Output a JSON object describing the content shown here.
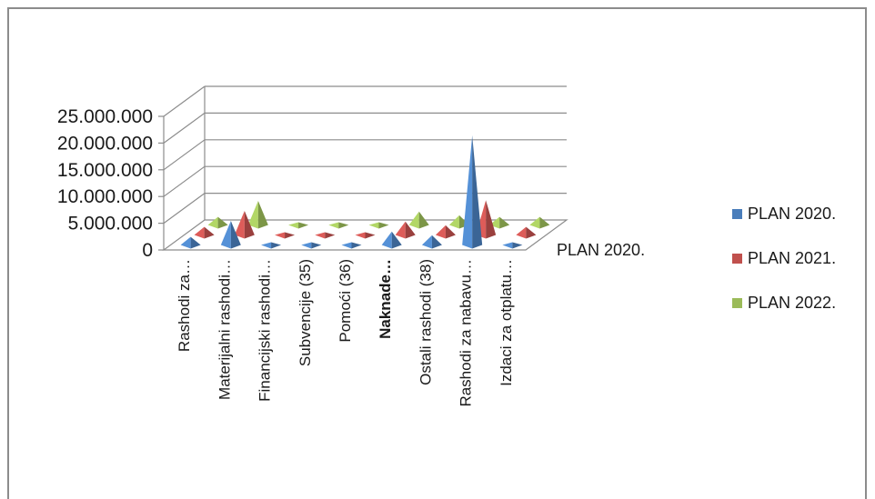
{
  "chart_data": {
    "type": "bar",
    "shape": "pyramid-3d",
    "title": "",
    "xlabel": "",
    "ylabel": "",
    "ylim": [
      0,
      25000000
    ],
    "ytick_step": 5000000,
    "ytick_labels": [
      "0",
      "5.000.000",
      "10.000.000",
      "15.000.000",
      "20.000.000",
      "25.000.000"
    ],
    "grid": true,
    "legend_position": "right",
    "depth_axis_label": "PLAN 2020.",
    "categories": [
      "Rashodi za…",
      "Materijalni rashodi…",
      "Financijski rashodi…",
      "Subvencije (35)",
      "Pomoći (36)",
      "Naknade…",
      "Ostali rashodi (38)",
      "Rashodi za nabavu…",
      "Izdaci za otplatu…"
    ],
    "series": [
      {
        "name": "PLAN 2020.",
        "color": "#4a7ebb",
        "values": [
          1500000,
          4500000,
          100000,
          500000,
          150000,
          2500000,
          1800000,
          20500000,
          250000
        ]
      },
      {
        "name": "PLAN 2021.",
        "color": "#c0504d",
        "values": [
          1500000,
          4500000,
          100000,
          500000,
          150000,
          2500000,
          1800000,
          6500000,
          1500000
        ]
      },
      {
        "name": "PLAN 2022.",
        "color": "#9bbb59",
        "values": [
          1500000,
          4500000,
          100000,
          500000,
          150000,
          2500000,
          1800000,
          1500000,
          1500000
        ]
      }
    ]
  }
}
